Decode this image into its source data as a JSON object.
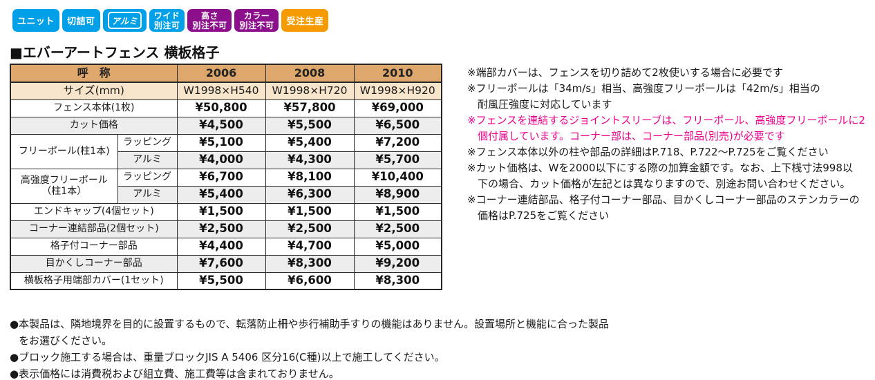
{
  "page": {
    "title": "■エバーアートフェンス 横板格子"
  },
  "colors": {
    "badge_blue": "#00A0E9",
    "badge_purple": "#8C0F8C",
    "badge_orange": "#F59A00",
    "header_tan": "#DEA76C",
    "size_row_tan": "#F7E5CB",
    "shaded_gray": "#EDEDED",
    "note_pink": "#EC008C"
  },
  "badges": [
    {
      "name": "badge-unit",
      "style": "single",
      "color": "#00A0E9",
      "label": "ユニット"
    },
    {
      "name": "badge-kiritsume-ka",
      "style": "single",
      "color": "#00A0E9",
      "label": "切詰可"
    },
    {
      "name": "badge-aluminum",
      "style": "outlined",
      "color": "#00A0E9",
      "label": "アルミ"
    },
    {
      "name": "badge-wide-bechu-ka",
      "style": "double",
      "color": "#00A0E9",
      "lines": [
        "ワイド",
        "別注可"
      ]
    },
    {
      "name": "badge-takasa-bechu-fuka",
      "style": "double",
      "color": "#8C0F8C",
      "lines": [
        "高さ",
        "別注不可"
      ]
    },
    {
      "name": "badge-color-bechu-fuka",
      "style": "double",
      "color": "#8C0F8C",
      "lines": [
        "カラー",
        "別注不可"
      ]
    },
    {
      "name": "badge-juchu-seisan",
      "style": "single",
      "color": "#F59A00",
      "label": "受注生産"
    }
  ],
  "table": {
    "columns": [
      "呼　称",
      "2006",
      "2008",
      "2010"
    ],
    "size_row": {
      "label": "サイズ(mm)",
      "values": [
        "W1998×H540",
        "W1998×H720",
        "W1998×H920"
      ]
    },
    "rows": [
      {
        "label": "フェンス本体(1枚)",
        "span": "full",
        "shaded": false,
        "values": [
          "¥50,800",
          "¥57,800",
          "¥69,000"
        ]
      },
      {
        "label": "カット価格",
        "span": "full",
        "shaded": true,
        "values": [
          "¥4,500",
          "¥5,500",
          "¥6,500"
        ]
      },
      {
        "label": "フリーポール(柱1本)",
        "rowspan": 2,
        "sublabel": "ラッピング",
        "shaded": false,
        "values": [
          "¥5,100",
          "¥5,400",
          "¥7,200"
        ]
      },
      {
        "sublabel": "アルミ",
        "shaded": true,
        "values": [
          "¥4,000",
          "¥4,300",
          "¥5,700"
        ]
      },
      {
        "label": "高強度フリーポール（柱1本）",
        "rowspan": 2,
        "sublabel": "ラッピング",
        "shaded": false,
        "values": [
          "¥6,700",
          "¥8,100",
          "¥10,400"
        ]
      },
      {
        "sublabel": "アルミ",
        "shaded": true,
        "values": [
          "¥5,400",
          "¥6,300",
          "¥8,900"
        ]
      },
      {
        "label": "エンドキャップ(4個セット)",
        "span": "full",
        "shaded": false,
        "values": [
          "¥1,500",
          "¥1,500",
          "¥1,500"
        ]
      },
      {
        "label": "コーナー連結部品(2個セット)",
        "span": "full",
        "shaded": true,
        "values": [
          "¥2,500",
          "¥2,500",
          "¥2,500"
        ]
      },
      {
        "label": "格子付コーナー部品",
        "span": "full",
        "shaded": false,
        "values": [
          "¥4,400",
          "¥4,700",
          "¥5,000"
        ]
      },
      {
        "label": "目かくしコーナー部品",
        "span": "full",
        "shaded": true,
        "values": [
          "¥7,600",
          "¥8,300",
          "¥9,200"
        ]
      },
      {
        "label": "横板格子用端部カバー(1セット)",
        "span": "full",
        "shaded": false,
        "values": [
          "¥5,500",
          "¥6,600",
          "¥8,300"
        ]
      }
    ]
  },
  "side_notes": [
    {
      "text": "※端部カバーは、フェンスを切り詰めて2枚使いする場合に必要です",
      "indent": false,
      "pink": false
    },
    {
      "text": "※フリーポールは「34m/s」相当、高強度フリーポールは「42m/s」相当の",
      "indent": false,
      "pink": false
    },
    {
      "text": "耐風圧強度に対応しています",
      "indent": true,
      "pink": false
    },
    {
      "text": "※フェンスを連結するジョイントスリーブは、フリーポール、高強度フリーポールに2",
      "indent": false,
      "pink": true
    },
    {
      "text": "個付属しています。コーナー部は、コーナー部品(別売)が必要です",
      "indent": true,
      "pink": true
    },
    {
      "text": "※フェンス本体以外の柱や部品の詳細はP.718、P.722〜P.725をご覧ください",
      "indent": false,
      "pink": false
    },
    {
      "text": "※カット価格は、Wを2000以下にする際の加算金額です。なお、上下桟寸法998以",
      "indent": false,
      "pink": false
    },
    {
      "text": "下の場合、カット価格が左記とは異なりますので、別途お問い合わせください。",
      "indent": true,
      "pink": false
    },
    {
      "text": "※コーナー連結部品、格子付コーナー部品、目かくしコーナー部品のステンカラーの",
      "indent": false,
      "pink": false
    },
    {
      "text": "価格はP.725をご覧ください",
      "indent": true,
      "pink": false
    }
  ],
  "bottom_notes": [
    {
      "text": "●本製品は、隣地境界を目的に設置するもので、転落防止柵や歩行補助手すりの機能はありません。設置場所と機能に合った製品",
      "indent": false
    },
    {
      "text": "をお選びください。",
      "indent": true
    },
    {
      "text": "●ブロック施工する場合は、重量ブロックJIS A 5406 区分16(C種)以上で施工してください。",
      "indent": false
    },
    {
      "text": "●表示価格には消費税および組立費、施工費等は含まれておりません。",
      "indent": false
    }
  ]
}
